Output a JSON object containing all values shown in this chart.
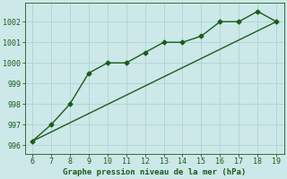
{
  "title": "Graphe pression niveau de la mer (hPa)",
  "line1_x": [
    6,
    7,
    8,
    9,
    10,
    11,
    12,
    13,
    14,
    15,
    16,
    17,
    18,
    19
  ],
  "line1_y": [
    996.2,
    997.0,
    998.0,
    999.5,
    1000.0,
    1000.0,
    1000.5,
    1001.0,
    1001.0,
    1001.3,
    1002.0,
    1002.0,
    1002.5,
    1002.0
  ],
  "line2_x": [
    6,
    19
  ],
  "line2_y": [
    996.2,
    1002.0
  ],
  "xlim": [
    5.6,
    19.4
  ],
  "ylim": [
    995.6,
    1002.9
  ],
  "yticks": [
    996,
    997,
    998,
    999,
    1000,
    1001,
    1002
  ],
  "xticks": [
    6,
    7,
    8,
    9,
    10,
    11,
    12,
    13,
    14,
    15,
    16,
    17,
    18,
    19
  ],
  "line_color": "#1a5c1a",
  "bg_color": "#cce8e8",
  "grid_color_major": "#aacfcf",
  "grid_color_minor": "#bbdddd",
  "marker": "D",
  "marker_size": 2.5,
  "line_width": 1.0,
  "xlabel_fontsize": 6.5,
  "tick_fontsize": 6.0
}
